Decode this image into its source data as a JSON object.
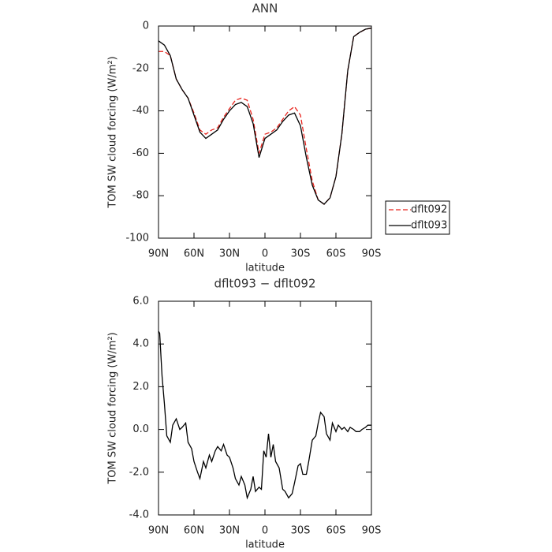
{
  "chart_data": [
    {
      "type": "line",
      "title": "ANN",
      "xlabel": "latitude",
      "ylabel": "TOM SW cloud forcing (W/m²)",
      "x": [
        90,
        85,
        80,
        75,
        70,
        65,
        60,
        55,
        50,
        45,
        40,
        35,
        30,
        25,
        20,
        15,
        10,
        5,
        0,
        -5,
        -10,
        -15,
        -20,
        -25,
        -30,
        -35,
        -40,
        -45,
        -50,
        -55,
        -60,
        -65,
        -70,
        -75,
        -80,
        -85,
        -90
      ],
      "series": [
        {
          "name": "dflt092",
          "color": "#e8231c",
          "style": "dashed",
          "values": [
            -12,
            -12,
            -14,
            -25,
            -30,
            -34,
            -41,
            -49,
            -51,
            -49,
            -48,
            -43,
            -39,
            -35,
            -34,
            -35,
            -44,
            -60,
            -51,
            -50,
            -48,
            -44,
            -40,
            -38,
            -42,
            -58,
            -73,
            -82,
            -84,
            -81,
            -71,
            -51,
            -21,
            -5,
            -3,
            -1.5,
            -1
          ]
        },
        {
          "name": "dflt093",
          "color": "#000000",
          "style": "solid",
          "values": [
            -7,
            -9,
            -14,
            -25,
            -30,
            -34,
            -42,
            -50,
            -53,
            -51,
            -49,
            -44,
            -40,
            -37,
            -36,
            -38,
            -46,
            -62,
            -53,
            -51,
            -49,
            -45,
            -42,
            -41,
            -47,
            -62,
            -75,
            -82,
            -84,
            -81,
            -71,
            -51,
            -21,
            -5,
            -3,
            -1.5,
            -1
          ]
        }
      ],
      "xlim": [
        90,
        -90
      ],
      "xticks": [
        {
          "value": 90,
          "label": "90N"
        },
        {
          "value": 60,
          "label": "60N"
        },
        {
          "value": 30,
          "label": "30N"
        },
        0,
        {
          "value": -30,
          "label": "30S"
        },
        {
          "value": -60,
          "label": "60S"
        },
        {
          "value": -90,
          "label": "90S"
        }
      ],
      "ylim": [
        -100,
        0
      ],
      "yticks": [
        0,
        -20,
        -40,
        -60,
        -80,
        -100
      ],
      "legend": "right"
    },
    {
      "type": "line",
      "title": "dflt093 − dflt092",
      "xlabel": "latitude",
      "ylabel": "TOM SW cloud forcing (W/m²)",
      "x": [
        90,
        89,
        87,
        85,
        83,
        80,
        78,
        75,
        72,
        70,
        67,
        65,
        62,
        60,
        57,
        55,
        52,
        50,
        47,
        45,
        42,
        40,
        37,
        35,
        32,
        30,
        27,
        25,
        22,
        20,
        17,
        15,
        12,
        10,
        8,
        5,
        3,
        1,
        -1,
        -3,
        -5,
        -7,
        -9,
        -12,
        -15,
        -17,
        -20,
        -23,
        -25,
        -28,
        -30,
        -32,
        -35,
        -37,
        -40,
        -43,
        -45,
        -47,
        -50,
        -52,
        -55,
        -57,
        -60,
        -62,
        -65,
        -67,
        -70,
        -72,
        -75,
        -77,
        -80,
        -82,
        -85,
        -87,
        -90
      ],
      "values": [
        4.6,
        4.5,
        2.5,
        1.2,
        -0.3,
        -0.6,
        0.2,
        0.5,
        0.0,
        0.1,
        0.3,
        -0.6,
        -0.9,
        -1.5,
        -2.0,
        -2.3,
        -1.5,
        -1.8,
        -1.2,
        -1.5,
        -1.0,
        -0.8,
        -1.0,
        -0.7,
        -1.2,
        -1.3,
        -1.8,
        -2.3,
        -2.6,
        -2.2,
        -2.6,
        -3.2,
        -2.8,
        -2.2,
        -2.9,
        -2.7,
        -2.8,
        -1.0,
        -1.3,
        -0.2,
        -1.3,
        -0.7,
        -1.5,
        -1.8,
        -2.8,
        -2.9,
        -3.2,
        -3.0,
        -2.5,
        -1.7,
        -1.6,
        -2.1,
        -2.1,
        -1.5,
        -0.5,
        -0.3,
        0.3,
        0.8,
        0.6,
        -0.2,
        -0.5,
        0.3,
        -0.1,
        0.2,
        0.0,
        0.1,
        -0.1,
        0.1,
        0.0,
        -0.1,
        -0.1,
        0.0,
        0.1,
        0.2,
        0.2
      ],
      "color": "#000000",
      "style": "solid",
      "xlim": [
        90,
        -90
      ],
      "xticks": [
        {
          "value": 90,
          "label": "90N"
        },
        {
          "value": 60,
          "label": "60N"
        },
        {
          "value": 30,
          "label": "30N"
        },
        0,
        {
          "value": -30,
          "label": "30S"
        },
        {
          "value": -60,
          "label": "60S"
        },
        {
          "value": -90,
          "label": "90S"
        }
      ],
      "ylim": [
        -4,
        6
      ],
      "yticks": [
        {
          "value": 6,
          "label": "6.0"
        },
        {
          "value": 4,
          "label": "4.0"
        },
        {
          "value": 2,
          "label": "2.0"
        },
        {
          "value": 0,
          "label": "0.0"
        },
        {
          "value": -2,
          "label": "-2.0"
        },
        {
          "value": -4,
          "label": "-4.0"
        }
      ]
    }
  ]
}
